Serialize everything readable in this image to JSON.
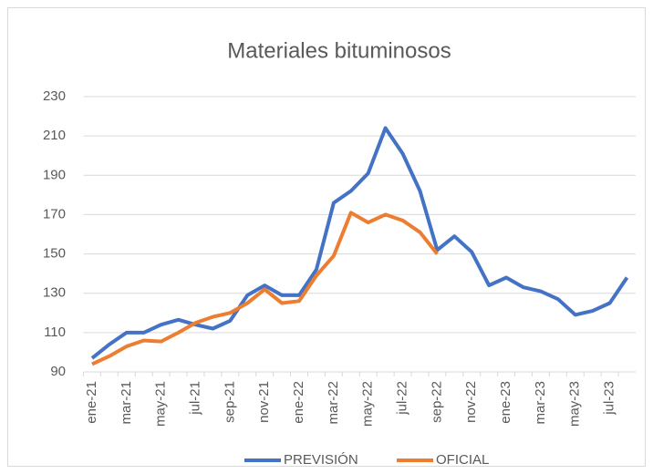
{
  "chart_data": {
    "type": "line",
    "title": "Materiales bituminosos",
    "categories": [
      "ene-21",
      null,
      "mar-21",
      null,
      "may-21",
      null,
      "jul-21",
      null,
      "sep-21",
      null,
      "nov-21",
      null,
      "ene-22",
      null,
      "mar-22",
      null,
      "may-22",
      null,
      "jul-22",
      null,
      "sep-22",
      null,
      "nov-22",
      null,
      "ene-23",
      null,
      "mar-23",
      null,
      "may-23",
      null,
      "jul-23",
      null
    ],
    "series": [
      {
        "name": "PREVISIÓN",
        "color": "#4472c4",
        "values": [
          97,
          104,
          110,
          110,
          114,
          116.5,
          114,
          112,
          116,
          129,
          134,
          129,
          129,
          142,
          176,
          182,
          191,
          214,
          201,
          182,
          152,
          159,
          151,
          134,
          138,
          133,
          131,
          127,
          119,
          121,
          125,
          138
        ]
      },
      {
        "name": "OFICIAL",
        "color": "#ed7d31",
        "values": [
          94,
          98,
          103,
          106,
          105.5,
          110,
          115,
          118,
          120,
          125,
          132,
          125,
          126,
          139,
          149,
          171,
          166,
          170,
          167,
          161,
          150,
          null,
          null,
          null,
          null,
          null,
          null,
          null,
          null,
          null,
          null,
          null
        ]
      }
    ],
    "ylim": [
      90,
      230
    ],
    "yticks": [
      90,
      110,
      130,
      150,
      170,
      190,
      210,
      230
    ],
    "grid": true,
    "legend": "bottom"
  }
}
